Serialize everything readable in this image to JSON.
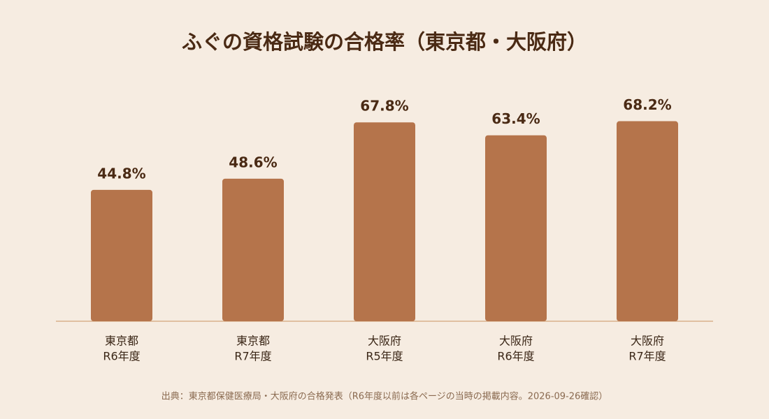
{
  "chart_data": {
    "type": "bar",
    "title": "ふぐの資格試験の合格率（東京都・大阪府）",
    "categories": [
      [
        "東京都",
        "R6年度"
      ],
      [
        "東京都",
        "R7年度"
      ],
      [
        "大阪府",
        "R5年度"
      ],
      [
        "大阪府",
        "R6年度"
      ],
      [
        "大阪府",
        "R7年度"
      ]
    ],
    "values": [
      44.8,
      48.6,
      67.8,
      63.4,
      68.2
    ],
    "value_labels": [
      "44.8%",
      "48.6%",
      "67.8%",
      "63.4%",
      "68.2%"
    ],
    "color": "#b5744b",
    "source": "出典：東京都保健医療局・大阪府の合格発表（R6年度以前は各ページの当時の掲載内容。2026-09-26確認）"
  }
}
